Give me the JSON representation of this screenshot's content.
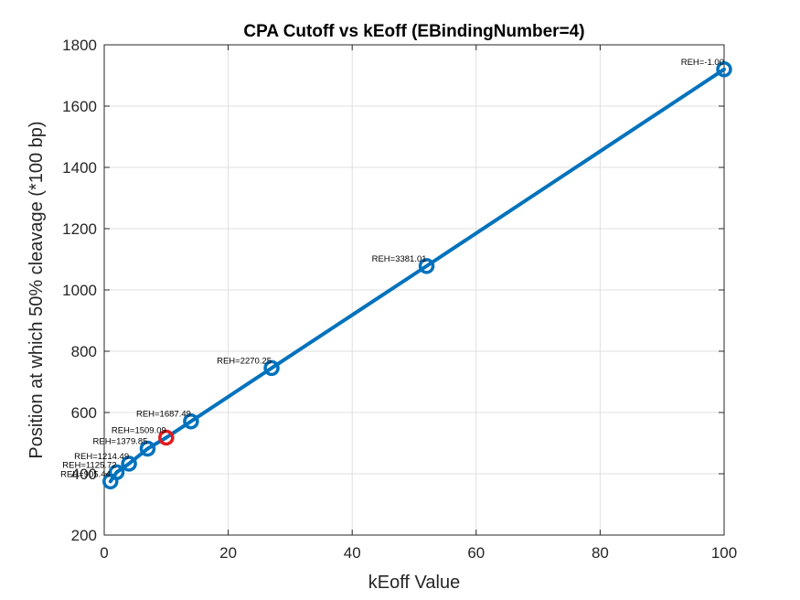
{
  "chart_data": {
    "type": "line",
    "title": "CPA Cutoff vs kEoff (EBindingNumber=4)",
    "xlabel": "kEoff Value",
    "ylabel": "Position at which 50% cleavage (*100 bp)",
    "xlim": [
      0,
      100
    ],
    "ylim": [
      200,
      1800
    ],
    "xticks": [
      0,
      20,
      40,
      60,
      80,
      100
    ],
    "yticks": [
      200,
      400,
      600,
      800,
      1000,
      1200,
      1400,
      1600,
      1800
    ],
    "grid": true,
    "series": [
      {
        "color": "#0072BD",
        "marker": "circle",
        "points": [
          {
            "x": 1,
            "y": 375,
            "label": "REH=905.44"
          },
          {
            "x": 2,
            "y": 405,
            "label": "REH=1125.72"
          },
          {
            "x": 4,
            "y": 433,
            "label": "REH=1214.49"
          },
          {
            "x": 7,
            "y": 482,
            "label": "REH=1379.85"
          },
          {
            "x": 10,
            "y": 518,
            "label": "REH=1509.09",
            "highlight": true
          },
          {
            "x": 14,
            "y": 571,
            "label": "REH=1687.49"
          },
          {
            "x": 27,
            "y": 745,
            "label": "REH=2270.25"
          },
          {
            "x": 52,
            "y": 1078,
            "label": "REH=3381.01"
          },
          {
            "x": 100,
            "y": 1720,
            "label": "REH=-1.00"
          }
        ]
      }
    ],
    "highlight_color": "#E31A1C"
  }
}
